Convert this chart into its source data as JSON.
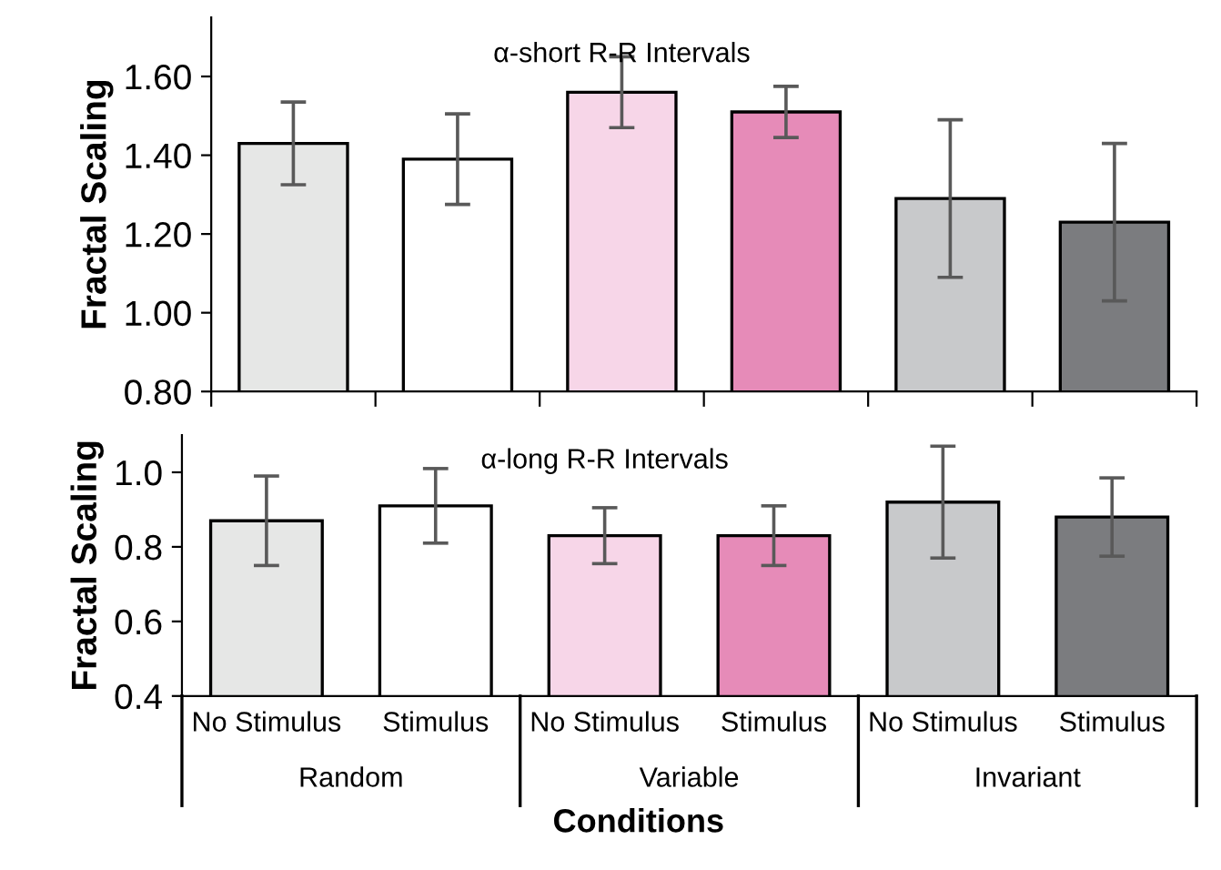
{
  "chart_data": [
    {
      "type": "bar",
      "title": "α-short R-R Intervals",
      "ylabel": "Fractal Scaling",
      "categories": [
        null,
        null,
        null,
        null,
        null,
        null
      ],
      "values": [
        1.43,
        1.39,
        1.56,
        1.51,
        1.29,
        1.23
      ],
      "errors": [
        0.105,
        0.115,
        0.09,
        0.065,
        0.2,
        0.2
      ],
      "colors": [
        "#e6e7e6",
        "#ffffff",
        "#f7d6e8",
        "#e68bb8",
        "#c8c9cb",
        "#7b7c7f"
      ],
      "ylim": [
        0.8,
        1.75
      ],
      "yticks": [
        {
          "value": 0.8,
          "label": "0.80"
        },
        {
          "value": 1.0,
          "label": "1.00"
        },
        {
          "value": 1.2,
          "label": "1.20"
        },
        {
          "value": 1.4,
          "label": "1.40"
        },
        {
          "value": 1.6,
          "label": "1.60"
        }
      ],
      "tick_labels": "y",
      "grid": false,
      "legend": false
    },
    {
      "type": "bar",
      "title": "α-long R-R Intervals",
      "ylabel": "Fractal Scaling",
      "xlabel": "Conditions",
      "categories": [
        "No Stimulus",
        "Stimulus",
        "No Stimulus",
        "Stimulus",
        "No Stimulus",
        "Stimulus"
      ],
      "values": [
        0.87,
        0.91,
        0.83,
        0.83,
        0.92,
        0.88
      ],
      "errors": [
        0.12,
        0.1,
        0.075,
        0.08,
        0.15,
        0.105
      ],
      "colors": [
        "#e6e7e6",
        "#ffffff",
        "#f7d6e8",
        "#e68bb8",
        "#c8c9cb",
        "#7b7c7f"
      ],
      "ylim": [
        0.4,
        1.1
      ],
      "yticks": [
        0.4,
        0.6,
        0.8,
        {
          "value": 1.0,
          "label": "1.0"
        }
      ],
      "annotations": [
        "Random",
        "Variable",
        "Invariant"
      ],
      "grid": false,
      "legend": false
    }
  ]
}
